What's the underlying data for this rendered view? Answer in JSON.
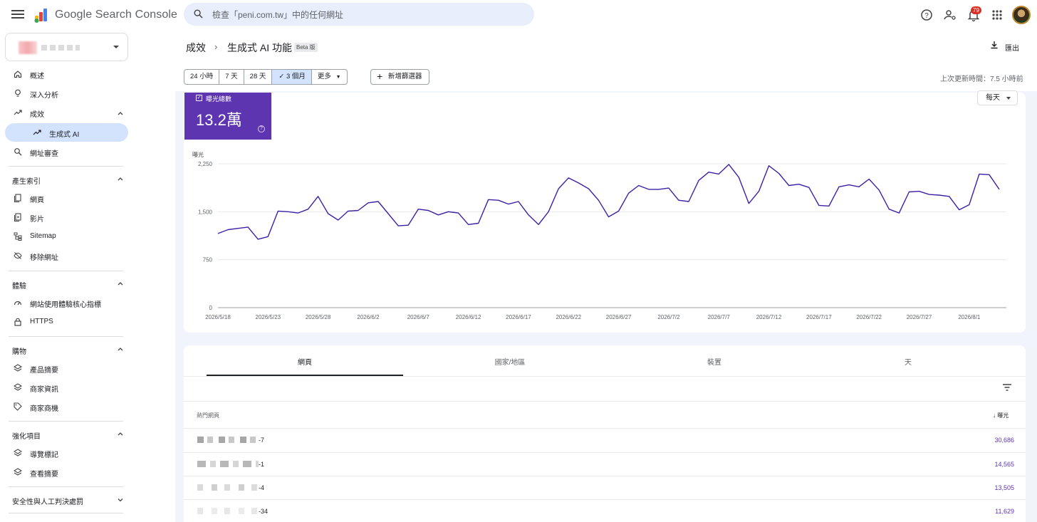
{
  "app": {
    "brand": "Google Search Console",
    "search_placeholder": "檢查「peni.com.tw」中的任何網址",
    "notifications_count": "79"
  },
  "sidebar": {
    "items_top": [
      {
        "label": "概述",
        "icon": "home-icon"
      },
      {
        "label": "深入分析",
        "icon": "lightbulb-icon"
      }
    ],
    "performance": {
      "label": "成效",
      "icon": "trending-up-icon"
    },
    "performance_child": {
      "label": "生成式 AI",
      "icon": "trending-up-icon"
    },
    "url_inspection": {
      "label": "網址審查",
      "icon": "search-icon"
    },
    "indexing": {
      "header": "產生索引",
      "items": [
        {
          "label": "網頁",
          "icon": "pages-icon"
        },
        {
          "label": "影片",
          "icon": "video-pages-icon"
        },
        {
          "label": "Sitemap",
          "icon": "sitemap-icon"
        },
        {
          "label": "移除網址",
          "icon": "removals-icon"
        }
      ]
    },
    "experience": {
      "header": "體驗",
      "items": [
        {
          "label": "網站使用體驗核心指標",
          "icon": "gauge-icon"
        },
        {
          "label": "HTTPS",
          "icon": "lock-icon"
        }
      ]
    },
    "shopping": {
      "header": "購物",
      "items": [
        {
          "label": "產品摘要",
          "icon": "layers-icon"
        },
        {
          "label": "商家資訊",
          "icon": "layers-icon"
        },
        {
          "label": "商家商機",
          "icon": "tag-icon"
        }
      ]
    },
    "enhancements": {
      "header": "強化項目",
      "items": [
        {
          "label": "導覽標記",
          "icon": "layers-icon"
        },
        {
          "label": "查看摘要",
          "icon": "layers-icon"
        }
      ]
    },
    "security": {
      "header": "安全性與人工判決處罰"
    }
  },
  "header": {
    "breadcrumb_root": "成效",
    "title": "生成式 AI 功能",
    "beta": "Beta 版",
    "export": "匯出"
  },
  "filters": {
    "ranges": [
      "24 小時",
      "7 天",
      "28 天",
      "3 個月",
      "更多"
    ],
    "selected": "3 個月",
    "add_filter": "新增篩選器",
    "last_update": "上次更新時間：7.5 小時前"
  },
  "metric": {
    "label": "曝光總數",
    "value": "13.2萬",
    "granularity": "每天"
  },
  "chart_data": {
    "type": "line",
    "ylabel": "曝光",
    "ylim": [
      0,
      2250
    ],
    "y_ticks": [
      "0",
      "750",
      "1,500",
      "2,250"
    ],
    "x_ticks": [
      "2026/5/18",
      "2026/5/23",
      "2026/5/28",
      "2026/6/2",
      "2026/6/7",
      "2026/6/12",
      "2026/6/17",
      "2026/6/22",
      "2026/6/27",
      "2026/7/2",
      "2026/7/7",
      "2026/7/12",
      "2026/7/17",
      "2026/7/22",
      "2026/7/27",
      "2026/8/1"
    ],
    "series_color": "#3f1fa6",
    "series": [
      {
        "values": [
          1160,
          1220,
          1240,
          1260,
          1070,
          1110,
          1510,
          1500,
          1480,
          1540,
          1740,
          1470,
          1370,
          1510,
          1520,
          1640,
          1660,
          1470,
          1280,
          1290,
          1540,
          1520,
          1450,
          1500,
          1480,
          1300,
          1320,
          1690,
          1680,
          1620,
          1660,
          1450,
          1300,
          1500,
          1860,
          2030,
          1950,
          1860,
          1680,
          1420,
          1510,
          1790,
          1910,
          1850,
          1850,
          1870,
          1680,
          1660,
          1990,
          2120,
          2090,
          2240,
          2040,
          1630,
          1820,
          2220,
          2100,
          1910,
          1930,
          1880,
          1600,
          1590,
          1890,
          1920,
          1890,
          2010,
          1840,
          1540,
          1480,
          1810,
          1820,
          1770,
          1760,
          1740,
          1530,
          1610,
          2090,
          2080,
          1850
        ]
      }
    ]
  },
  "table": {
    "tabs": [
      "網頁",
      "國家/地區",
      "裝置",
      "天"
    ],
    "column_left": "熱門網頁",
    "column_right": "曝光",
    "rows": [
      {
        "suffix": "-7",
        "value": "30,686"
      },
      {
        "suffix": "-1",
        "value": "14,565"
      },
      {
        "suffix": "-4",
        "value": "13,505"
      },
      {
        "suffix": "-34",
        "value": "11,629"
      }
    ]
  }
}
